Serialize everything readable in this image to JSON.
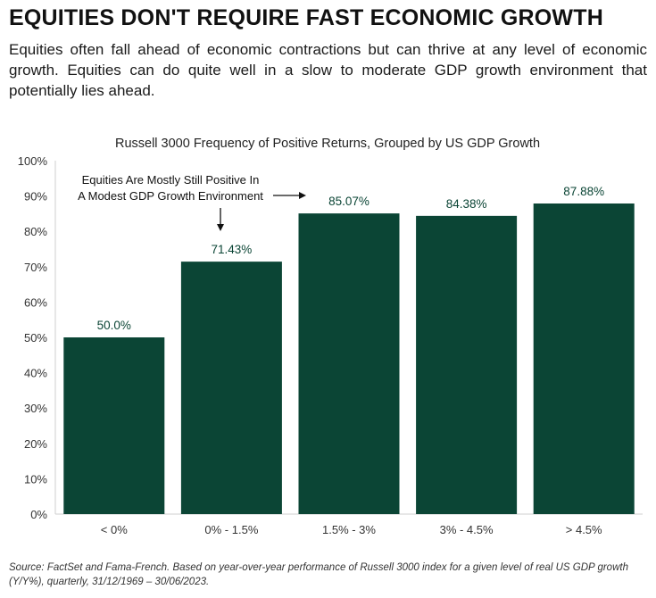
{
  "header": {
    "title": "EQUITIES DON'T REQUIRE FAST ECONOMIC GROWTH",
    "subtitle": "Equities often fall ahead of economic contractions but can thrive at any level of economic growth. Equities can do quite well in a slow to moderate GDP growth environment that potentially lies ahead."
  },
  "chart_data": {
    "type": "bar",
    "title": "Russell 3000 Frequency of Positive Returns, Grouped by US GDP Growth",
    "categories": [
      "< 0%",
      "0% - 1.5%",
      "1.5% - 3%",
      "3% - 4.5%",
      "> 4.5%"
    ],
    "values": [
      50.0,
      71.43,
      85.07,
      84.38,
      87.88
    ],
    "data_labels": [
      "50.0%",
      "71.43%",
      "85.07%",
      "84.38%",
      "87.88%"
    ],
    "ylim": [
      0,
      100
    ],
    "yticks": [
      0,
      10,
      20,
      30,
      40,
      50,
      60,
      70,
      80,
      90,
      100
    ],
    "ytick_labels": [
      "0%",
      "10%",
      "20%",
      "30%",
      "40%",
      "50%",
      "60%",
      "70%",
      "80%",
      "90%",
      "100%"
    ],
    "xlabel": "",
    "ylabel": "",
    "grid": false,
    "bar_color": "#0b4535",
    "label_color": "#0b4535",
    "annotation": {
      "lines": [
        "Equities Are Mostly Still Positive In",
        "A Modest GDP Growth Environment"
      ]
    }
  },
  "footer": {
    "source": "Source: FactSet and Fama-French. Based on year-over-year performance of Russell 3000 index for a given level of real US GDP growth (Y/Y%), quarterly, 31/12/1969 – 30/06/2023."
  }
}
